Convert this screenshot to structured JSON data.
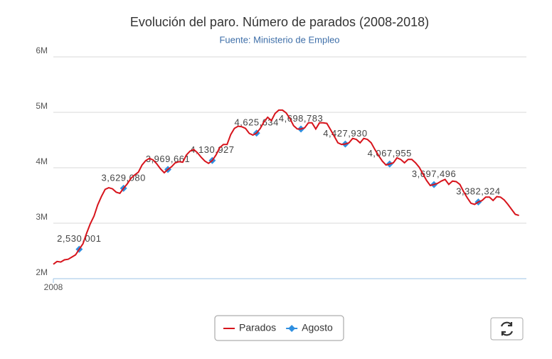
{
  "chart_data": {
    "type": "line",
    "title": "Evolución del paro. Número de parados (2008-2018)",
    "subtitle": "Fuente: Ministerio de Empleo",
    "xlim": [
      2008,
      2018.667
    ],
    "xticks": [
      {
        "value": 2008,
        "label": "2008"
      }
    ],
    "ylim": [
      2000000,
      6000000
    ],
    "yticks": [
      {
        "value": 2000000,
        "label": "2M"
      },
      {
        "value": 3000000,
        "label": "3M"
      },
      {
        "value": 4000000,
        "label": "4M"
      },
      {
        "value": 5000000,
        "label": "5M"
      },
      {
        "value": 6000000,
        "label": "6M"
      }
    ],
    "grid": true,
    "legend": "bottom",
    "series": [
      {
        "name": "Parados",
        "color": "#d7141c",
        "x": [
          2008,
          2008.083,
          2008.167,
          2008.25,
          2008.333,
          2008.417,
          2008.5,
          2008.583,
          2008.667,
          2008.75,
          2008.833,
          2008.917,
          2009,
          2009.083,
          2009.167,
          2009.25,
          2009.333,
          2009.417,
          2009.5,
          2009.583,
          2009.667,
          2009.75,
          2009.833,
          2009.917,
          2010,
          2010.083,
          2010.167,
          2010.25,
          2010.333,
          2010.417,
          2010.5,
          2010.583,
          2010.667,
          2010.75,
          2010.833,
          2010.917,
          2011,
          2011.083,
          2011.167,
          2011.25,
          2011.333,
          2011.417,
          2011.5,
          2011.583,
          2011.667,
          2011.75,
          2011.833,
          2011.917,
          2012,
          2012.083,
          2012.167,
          2012.25,
          2012.333,
          2012.417,
          2012.5,
          2012.583,
          2012.667,
          2012.75,
          2012.833,
          2012.917,
          2013,
          2013.083,
          2013.167,
          2013.25,
          2013.333,
          2013.417,
          2013.5,
          2013.583,
          2013.667,
          2013.75,
          2013.833,
          2013.917,
          2014,
          2014.083,
          2014.167,
          2014.25,
          2014.333,
          2014.417,
          2014.5,
          2014.583,
          2014.667,
          2014.75,
          2014.833,
          2014.917,
          2015,
          2015.083,
          2015.167,
          2015.25,
          2015.333,
          2015.417,
          2015.5,
          2015.583,
          2015.667,
          2015.75,
          2015.833,
          2015.917,
          2016,
          2016.083,
          2016.167,
          2016.25,
          2016.333,
          2016.417,
          2016.5,
          2016.583,
          2016.667,
          2016.75,
          2016.833,
          2016.917,
          2017,
          2017.083,
          2017.167,
          2017.25,
          2017.333,
          2017.417,
          2017.5,
          2017.583,
          2017.667,
          2017.75,
          2017.833,
          2017.917,
          2018,
          2018.083,
          2018.167,
          2018.25,
          2018.333,
          2018.417,
          2018.5
        ],
        "values": [
          2260000,
          2310000,
          2300000,
          2340000,
          2350000,
          2390000,
          2430000,
          2530001,
          2630000,
          2820000,
          2990000,
          3130000,
          3330000,
          3480000,
          3610000,
          3640000,
          3620000,
          3560000,
          3540000,
          3629080,
          3710000,
          3810000,
          3870000,
          3920000,
          4050000,
          4130000,
          4170000,
          4140000,
          4070000,
          3980000,
          3910000,
          3969661,
          4020000,
          4090000,
          4110000,
          4100000,
          4230000,
          4300000,
          4330000,
          4270000,
          4190000,
          4120000,
          4080000,
          4130927,
          4230000,
          4360000,
          4420000,
          4420000,
          4600000,
          4710000,
          4750000,
          4740000,
          4710000,
          4620000,
          4590000,
          4625634,
          4710000,
          4830000,
          4910000,
          4850000,
          4980000,
          5040000,
          5040000,
          4990000,
          4890000,
          4760000,
          4700000,
          4698783,
          4720000,
          4810000,
          4810000,
          4700000,
          4810000,
          4810000,
          4800000,
          4690000,
          4570000,
          4450000,
          4420000,
          4427930,
          4450000,
          4530000,
          4510000,
          4450000,
          4530000,
          4510000,
          4450000,
          4330000,
          4220000,
          4120000,
          4050000,
          4067955,
          4090000,
          4180000,
          4150000,
          4090000,
          4150000,
          4150000,
          4090000,
          4010000,
          3890000,
          3770000,
          3680000,
          3697496,
          3720000,
          3760000,
          3790000,
          3700000,
          3760000,
          3750000,
          3700000,
          3570000,
          3460000,
          3360000,
          3340000,
          3382324,
          3410000,
          3470000,
          3470000,
          3410000,
          3480000,
          3470000,
          3420000,
          3340000,
          3250000,
          3160000,
          3140000
        ]
      },
      {
        "name": "Agosto",
        "color": "#2f8fe0",
        "x": [
          2008.583,
          2009.583,
          2010.583,
          2011.583,
          2012.583,
          2013.583,
          2014.583,
          2015.583,
          2016.583,
          2017.583
        ],
        "values": [
          2530001,
          3629080,
          3969661,
          4130927,
          4625634,
          4698783,
          4427930,
          4067955,
          3697496,
          3382324
        ],
        "value_labels": [
          "2,530,001",
          "3,629,080",
          "3,969,661",
          "4,130,927",
          "4,625,634",
          "4,698,783",
          "4,427,930",
          "4,067,955",
          "3,697,496",
          "3,382,324"
        ]
      }
    ]
  }
}
